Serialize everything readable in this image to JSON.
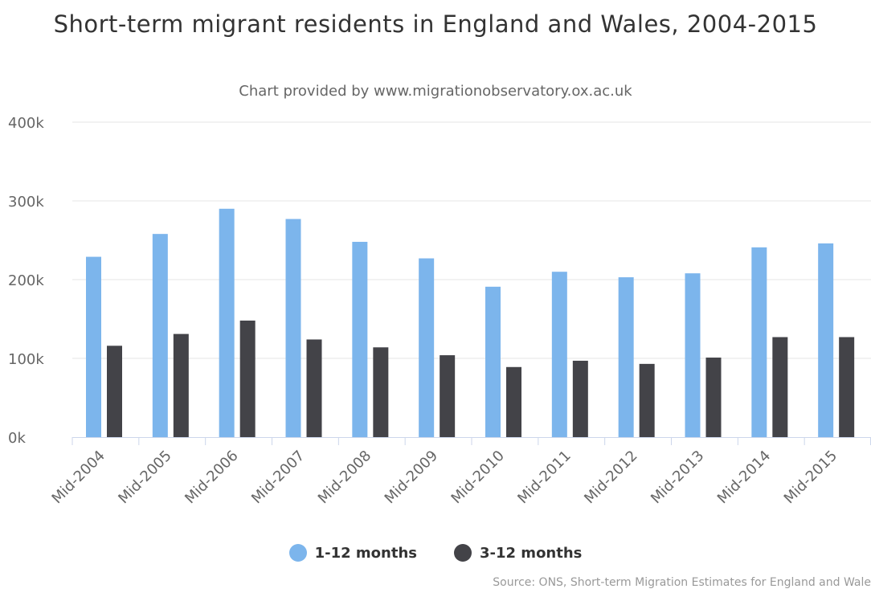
{
  "chart_data": {
    "type": "bar",
    "title": "Short-term migrant residents in England and Wales, 2004-2015",
    "subtitle": "Chart provided by www.migrationobservatory.ox.ac.uk",
    "credits": "Source: ONS, Short-term Migration Estimates for England and Wale",
    "categories": [
      "Mid-2004",
      "Mid-2005",
      "Mid-2006",
      "Mid-2007",
      "Mid-2008",
      "Mid-2009",
      "Mid-2010",
      "Mid-2011",
      "Mid-2012",
      "Mid-2013",
      "Mid-2014",
      "Mid-2015"
    ],
    "series": [
      {
        "name": "1-12 months",
        "color": "#7cb5ec",
        "values": [
          229000,
          258000,
          290000,
          277000,
          248000,
          227000,
          191000,
          210000,
          203000,
          208000,
          241000,
          246000
        ]
      },
      {
        "name": "3-12 months",
        "color": "#434348",
        "values": [
          116000,
          131000,
          148000,
          124000,
          114000,
          104000,
          89000,
          97000,
          93000,
          101000,
          127000,
          127000
        ]
      }
    ],
    "ylim": [
      0,
      400000
    ],
    "yticks": [
      0,
      100000,
      200000,
      300000,
      400000
    ],
    "ytick_labels": [
      "0k",
      "100k",
      "200k",
      "300k",
      "400k"
    ],
    "xlabel": "",
    "ylabel": "",
    "grid": true,
    "legend_position": "bottom-center"
  }
}
